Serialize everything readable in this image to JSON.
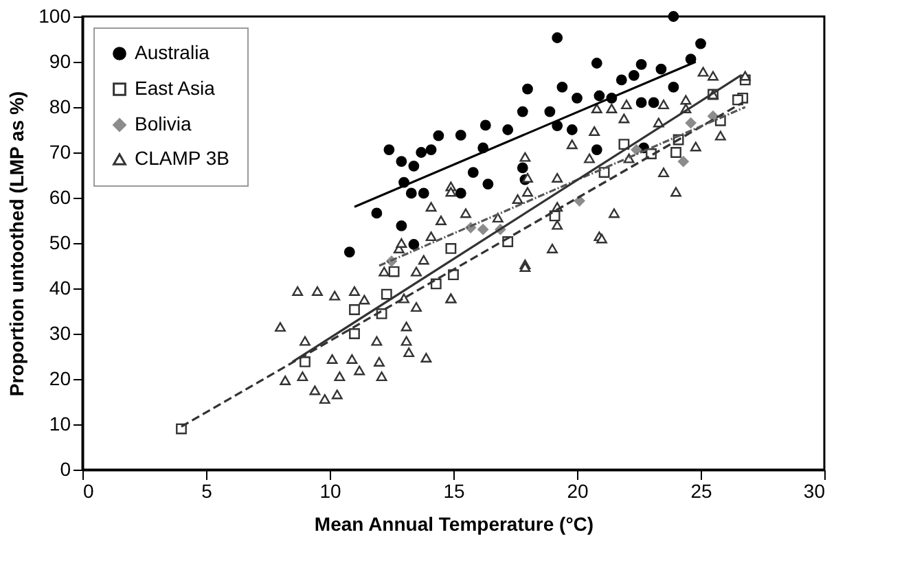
{
  "chart_data": {
    "type": "scatter",
    "xlabel": "Mean Annual Temperature (°C)",
    "ylabel": "Proportion untoothed (LMP as %)",
    "xlim": [
      0,
      30
    ],
    "ylim": [
      0,
      100
    ],
    "xticks": [
      0,
      5,
      10,
      15,
      20,
      25,
      30
    ],
    "yticks": [
      0,
      10,
      20,
      30,
      40,
      50,
      60,
      70,
      80,
      90,
      100
    ],
    "grid": false,
    "legend": "top left",
    "series": [
      {
        "name": "Australia",
        "color": "#000000",
        "marker": "circle",
        "x": [
          10.8,
          13.4,
          12.4,
          12.9,
          13.4,
          13.7,
          14.1,
          14.4,
          13.0,
          13.3,
          13.8,
          11.9,
          12.9,
          15.3,
          15.3,
          15.8,
          16.4,
          17.9,
          16.2,
          17.2,
          17.8,
          18.0,
          16.3,
          18.9,
          19.2,
          19.4,
          19.2,
          20.0,
          20.8,
          20.9,
          19.8,
          22.6,
          23.1,
          22.3,
          22.6,
          23.4,
          24.6,
          25.0,
          21.8,
          23.9,
          21.4,
          17.8,
          20.8,
          22.7,
          23.9
        ],
        "values": [
          48,
          49.7,
          70.6,
          68,
          67,
          70,
          70.6,
          73.7,
          63.4,
          61,
          61,
          56.6,
          53.8,
          73.8,
          61,
          65.6,
          63,
          64,
          71,
          75,
          79,
          84,
          76,
          79,
          75.9,
          84.4,
          95.3,
          82,
          89.7,
          82.5,
          75,
          81,
          81,
          87,
          89.4,
          88.4,
          90.6,
          94,
          86,
          84.4,
          82,
          66.6,
          70.6,
          71,
          100
        ]
      },
      {
        "name": "East Asia",
        "color": "#333333",
        "marker": "square",
        "x": [
          4.0,
          9.0,
          11.0,
          11.0,
          12.3,
          12.1,
          12.6,
          14.3,
          15.0,
          14.9,
          17.2,
          19.1,
          21.1,
          21.9,
          23.0,
          24.0,
          24.1,
          25.8,
          26.8,
          26.7,
          26.5,
          25.5
        ],
        "values": [
          9,
          23.8,
          35.3,
          30,
          38.7,
          34.4,
          43.7,
          41,
          43,
          48.8,
          50.3,
          56,
          65.6,
          71.8,
          69.7,
          70,
          72.8,
          77,
          86,
          82,
          81.6,
          82.8
        ]
      },
      {
        "name": "Bolivia",
        "color": "#8c8c8c",
        "marker": "diamond",
        "x": [
          12.5,
          15.7,
          16.2,
          16.9,
          20.1,
          22.4,
          24.3,
          24.6,
          25.5
        ],
        "values": [
          46,
          53.4,
          53,
          53,
          59.3,
          70.6,
          68,
          76.5,
          78
        ]
      },
      {
        "name": "CLAMP 3B",
        "color": "#333333",
        "marker": "triangle",
        "x": [
          8.0,
          8.7,
          9.5,
          10.2,
          11.0,
          9.0,
          8.2,
          8.9,
          9.4,
          9.8,
          10.3,
          10.4,
          10.1,
          10.9,
          11.2,
          12.1,
          12.0,
          11.9,
          13.1,
          13.1,
          13.2,
          13.9,
          13.5,
          13.0,
          11.4,
          14.9,
          12.2,
          12.8,
          13.5,
          13.8,
          14.9,
          14.1,
          14.5,
          14.1,
          12.9,
          14.9,
          17.9,
          18.0,
          19.2,
          20.8,
          21.4,
          22.0,
          21.9,
          23.5,
          24.4,
          25.1,
          25.5,
          25.5,
          26.8,
          19.8,
          20.5,
          20.7,
          18.0,
          19.2,
          17.6,
          19.2,
          21.5,
          20.9,
          24.0,
          23.5,
          24.8,
          25.8,
          24.4,
          23.3,
          22.1,
          16.8,
          15.5,
          17.9,
          19.0,
          17.9,
          14.9,
          21.0
        ],
        "values": [
          31.5,
          39.4,
          39.4,
          38.4,
          39.4,
          28.4,
          19.7,
          20.6,
          17.5,
          15.6,
          16.6,
          20.6,
          24.4,
          24.4,
          21.9,
          20.6,
          23.8,
          28.4,
          31.6,
          28.4,
          25.9,
          24.7,
          35.9,
          37.8,
          37.5,
          37.8,
          43.7,
          48.8,
          43.7,
          46.3,
          62.5,
          58,
          55,
          51.5,
          50,
          61.3,
          69,
          64.4,
          64.4,
          79.7,
          79.7,
          80.6,
          77.5,
          80.6,
          81.6,
          87.8,
          86.9,
          82.8,
          86.9,
          71.8,
          68.7,
          74.7,
          61.3,
          58,
          59.7,
          54,
          56.6,
          51.5,
          61.3,
          65.6,
          71.3,
          73.7,
          79.7,
          76.6,
          68.7,
          55.6,
          56.6,
          45.3,
          48.8,
          44.7,
          37.8,
          51
        ]
      },
      {
        "type": "line",
        "color": "#000000",
        "line_style": "solid",
        "x": [
          11,
          24.8
        ],
        "values": [
          58,
          90
        ]
      },
      {
        "type": "line",
        "color": "#333333",
        "line_style": "dashed",
        "x": [
          4,
          26.7
        ],
        "values": [
          9.5,
          81
        ]
      },
      {
        "type": "line",
        "color": "#555555",
        "line_style": "dotted",
        "x": [
          12,
          26.8
        ],
        "values": [
          45,
          80
        ]
      },
      {
        "type": "line",
        "color": "#333333",
        "line_style": "solid",
        "x": [
          8.5,
          26.6
        ],
        "values": [
          23.8,
          86.9
        ]
      }
    ]
  }
}
